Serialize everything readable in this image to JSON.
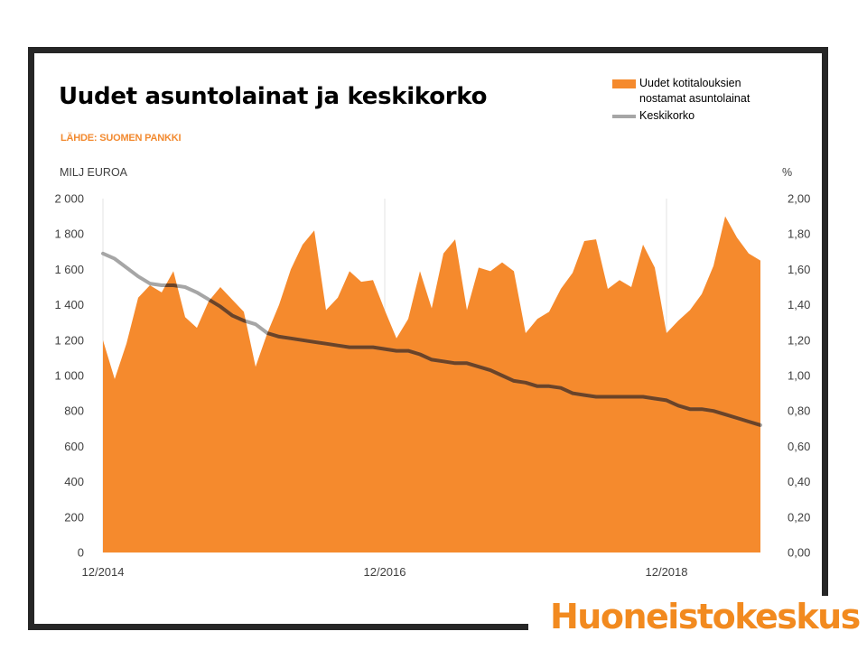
{
  "header": {
    "title": "Uudet asuntolainat ja keskikorko",
    "source": "LÄHDE: SUOMEN PANKKI"
  },
  "brand": {
    "logo_text": "Huoneistokeskus",
    "accent_color": "#f58a2d",
    "line_color": "#a6a6a6",
    "line_dark_color": "#6b4327"
  },
  "chart_data": {
    "type": "area",
    "title": "Uudet asuntolainat ja keskikorko",
    "left_axis_unit": "MILJ EUROA",
    "right_axis_unit": "%",
    "left_ylim": [
      0,
      2000
    ],
    "right_ylim": [
      0,
      2
    ],
    "left_ticks": [
      "2 000",
      "1 800",
      "1 600",
      "1 400",
      "1 200",
      "1 000",
      "800",
      "600",
      "400",
      "200",
      "0"
    ],
    "right_ticks": [
      "2,00",
      "1,80",
      "1,60",
      "1,40",
      "1,20",
      "1,00",
      "0,80",
      "0,60",
      "0,40",
      "0,20",
      "0,00"
    ],
    "x_tick_labels": [
      {
        "label": "12/2014",
        "index": 0
      },
      {
        "label": "12/2016",
        "index": 24
      },
      {
        "label": "12/2018",
        "index": 48
      }
    ],
    "legend": [
      "Uudet kotitalouksien nostamat asuntolainat",
      "Keskikorko"
    ],
    "legend_position": "top-right",
    "grid": "vertical lines at year ticks",
    "series": [
      {
        "name": "Uudet kotitalouksien nostamat asuntolainat",
        "kind": "area",
        "axis": "left",
        "values": [
          1200,
          980,
          1180,
          1440,
          1510,
          1470,
          1590,
          1330,
          1270,
          1420,
          1500,
          1430,
          1360,
          1050,
          1240,
          1400,
          1600,
          1740,
          1820,
          1370,
          1440,
          1590,
          1530,
          1540,
          1370,
          1210,
          1320,
          1590,
          1380,
          1690,
          1770,
          1370,
          1610,
          1590,
          1640,
          1590,
          1240,
          1320,
          1360,
          1490,
          1580,
          1760,
          1770,
          1490,
          1540,
          1500,
          1740,
          1610,
          1240,
          1310,
          1370,
          1460,
          1620,
          1900,
          1780,
          1690,
          1650
        ]
      },
      {
        "name": "Keskikorko",
        "kind": "line",
        "axis": "right",
        "values": [
          1.69,
          1.66,
          1.61,
          1.56,
          1.52,
          1.51,
          1.51,
          1.5,
          1.47,
          1.43,
          1.39,
          1.34,
          1.31,
          1.29,
          1.24,
          1.22,
          1.21,
          1.2,
          1.19,
          1.18,
          1.17,
          1.16,
          1.16,
          1.16,
          1.15,
          1.14,
          1.14,
          1.12,
          1.09,
          1.08,
          1.07,
          1.07,
          1.05,
          1.03,
          1.0,
          0.97,
          0.96,
          0.94,
          0.94,
          0.93,
          0.9,
          0.89,
          0.88,
          0.88,
          0.88,
          0.88,
          0.88,
          0.87,
          0.86,
          0.83,
          0.81,
          0.81,
          0.8,
          0.78,
          0.76,
          0.74,
          0.72
        ]
      }
    ]
  }
}
